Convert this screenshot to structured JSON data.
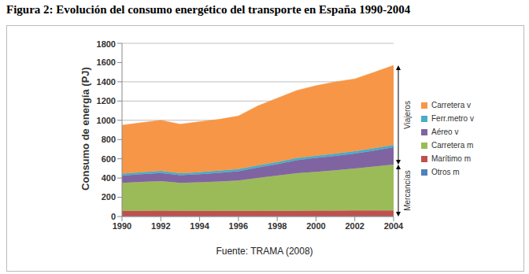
{
  "chart_data": {
    "type": "area",
    "title": "Figura 2: Evolución del consumo energético del transporte en España 1990-2004",
    "source": "Fuente: TRAMA (2008)",
    "y_label": "Consumo de energía (PJ)",
    "stacked": true,
    "grid": true,
    "legend": "right",
    "x": [
      1990,
      1991,
      1992,
      1993,
      1994,
      1995,
      1996,
      1997,
      1998,
      1999,
      2000,
      2001,
      2002,
      2003,
      2004
    ],
    "xlim": [
      1990,
      2004
    ],
    "xticks": [
      1990,
      1992,
      1994,
      1996,
      1998,
      2000,
      2002,
      2004
    ],
    "ylim": [
      0,
      1800
    ],
    "yticks": [
      0,
      200,
      400,
      600,
      800,
      1000,
      1200,
      1400,
      1600,
      1800
    ],
    "series": [
      {
        "name": "Carretera v",
        "color": "#f79646",
        "values": [
          505,
          515,
          526,
          509,
          524,
          534,
          553,
          618,
          663,
          702,
          727,
          746,
          751,
          790,
          825
        ]
      },
      {
        "name": "Ferr.metro v",
        "color": "#4bacc6",
        "values": [
          20,
          20,
          21,
          21,
          21,
          21,
          22,
          22,
          22,
          23,
          23,
          24,
          24,
          25,
          25
        ]
      },
      {
        "name": "Aéreo v",
        "color": "#8064a2",
        "values": [
          75,
          80,
          85,
          80,
          85,
          90,
          95,
          110,
          120,
          135,
          145,
          150,
          155,
          165,
          180
        ]
      },
      {
        "name": "Carretera m",
        "color": "#9bbb59",
        "values": [
          290,
          300,
          306,
          290,
          295,
          305,
          316,
          342,
          366,
          390,
          404,
          418,
          437,
          457,
          477
        ]
      },
      {
        "name": "Marítimo m",
        "color": "#c0504d",
        "values": [
          55,
          55,
          57,
          55,
          55,
          55,
          54,
          53,
          54,
          55,
          56,
          57,
          58,
          58,
          58
        ]
      },
      {
        "name": "Otros m",
        "color": "#4f81bd",
        "values": [
          5,
          5,
          5,
          5,
          5,
          5,
          5,
          5,
          5,
          5,
          5,
          5,
          5,
          5,
          5
        ]
      }
    ],
    "annotations": [
      {
        "text": "Viajeros",
        "series": [
          "Carretera v",
          "Ferr.metro v",
          "Aéreo v"
        ]
      },
      {
        "text": "Mercancías",
        "series": [
          "Carretera m",
          "Marítimo m",
          "Otros m"
        ]
      }
    ]
  }
}
